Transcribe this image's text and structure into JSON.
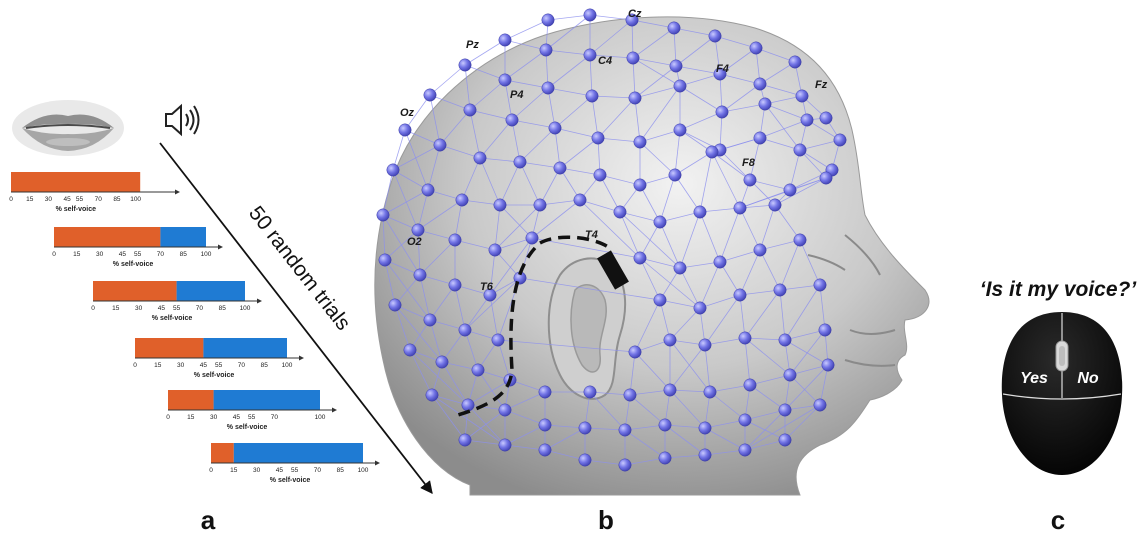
{
  "panel_a": {
    "trials_label": "50 random trials",
    "axis_label": "% self-voice",
    "colors": {
      "self": "#e0602a",
      "other": "#1f7bd3"
    },
    "bars": [
      {
        "ticks": [
          "0",
          "15",
          "30",
          "45",
          "55",
          "70",
          "85",
          "100"
        ],
        "self_voice_pct": 85
      },
      {
        "ticks": [
          "0",
          "15",
          "30",
          "45",
          "55",
          "70",
          "85",
          "100"
        ],
        "self_voice_pct": 70
      },
      {
        "ticks": [
          "0",
          "15",
          "30",
          "45",
          "55",
          "70",
          "85",
          "100"
        ],
        "self_voice_pct": 55
      },
      {
        "ticks": [
          "0",
          "15",
          "30",
          "45",
          "55",
          "70",
          "85",
          "100"
        ],
        "self_voice_pct": 45
      },
      {
        "ticks": [
          "0",
          "15",
          "30",
          "45",
          "55",
          "70",
          "100"
        ],
        "self_voice_pct": 30
      },
      {
        "ticks": [
          "0",
          "15",
          "30",
          "45",
          "55",
          "70",
          "85",
          "100"
        ],
        "self_voice_pct": 15
      }
    ],
    "mouth_icon": "lips-image",
    "speaker_icon": "speaker-icon",
    "letter": "a"
  },
  "panel_b": {
    "electrode_labels": [
      "Cz",
      "Pz",
      "C4",
      "P4",
      "F4",
      "Fz",
      "Oz",
      "F8",
      "O2",
      "T4",
      "T6"
    ],
    "electrode_color": "#6d6fe0",
    "letter": "b"
  },
  "panel_c": {
    "question": "‘Is it my voice?’",
    "left_button": "Yes",
    "right_button": "No",
    "mouse_icon": "computer-mouse-icon",
    "letter": "c"
  }
}
